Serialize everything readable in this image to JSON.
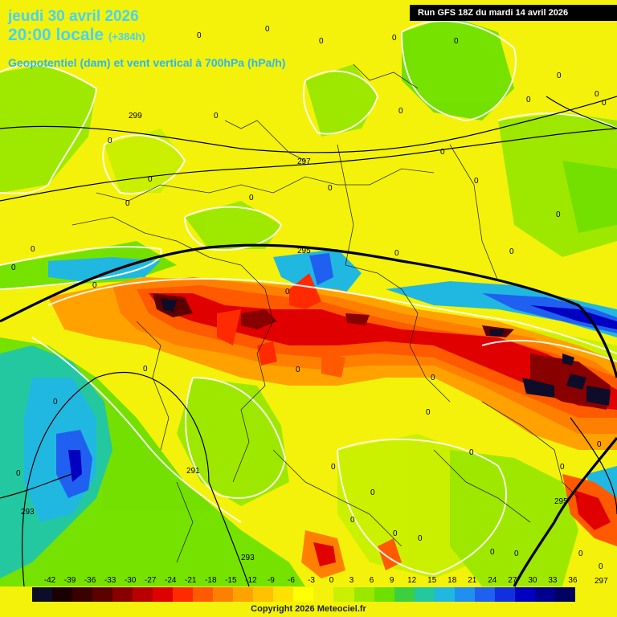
{
  "title": {
    "date": "jeudi 30 avril 2026",
    "time": "20:00 locale",
    "forecast_hour": "(+384h)",
    "parameter": "Geopotentiel (dam) et vent vertical à 700hPa (hPa/h)"
  },
  "run_info": "Run GFS 18Z du mardi 14 avril 2026",
  "copyright": "Copyright 2026 Meteociel.fr",
  "scale": {
    "labels": [
      "-42",
      "-39",
      "-36",
      "-33",
      "-30",
      "-27",
      "-24",
      "-21",
      "-18",
      "-15",
      "-12",
      "-9",
      "-6",
      "-3",
      "0",
      "3",
      "6",
      "9",
      "12",
      "15",
      "18",
      "21",
      "24",
      "27",
      "30",
      "33",
      "36"
    ],
    "colors": [
      "#0d0d2a",
      "#1a0000",
      "#3a0000",
      "#5c0000",
      "#880000",
      "#b80000",
      "#e00000",
      "#ff2a00",
      "#ff5a00",
      "#ff8000",
      "#ffa200",
      "#ffc000",
      "#ffe000",
      "#ffff00",
      "#f4f20a",
      "#c8f000",
      "#9ae800",
      "#6ee000",
      "#3cd040",
      "#24c8a0",
      "#20b8e0",
      "#2090f0",
      "#2060f0",
      "#1030e0",
      "#0000c0",
      "#000090",
      "#000060"
    ]
  },
  "contour_labels": {
    "heights": [
      "299",
      "297",
      "295",
      "291",
      "293",
      "293",
      "297"
    ],
    "zero_marks": [
      "0",
      "0",
      "0",
      "0",
      "0",
      "0",
      "0",
      "0",
      "0",
      "0",
      "0",
      "0",
      "0",
      "0",
      "0",
      "0",
      "0",
      "0",
      "0",
      "0",
      "0",
      "0",
      "0",
      "0",
      "0",
      "0",
      "0",
      "0",
      "0",
      "0",
      "0",
      "0",
      "0",
      "0",
      "0",
      "0",
      "0",
      "0",
      "0",
      "0",
      "0",
      "0",
      "0"
    ]
  }
}
